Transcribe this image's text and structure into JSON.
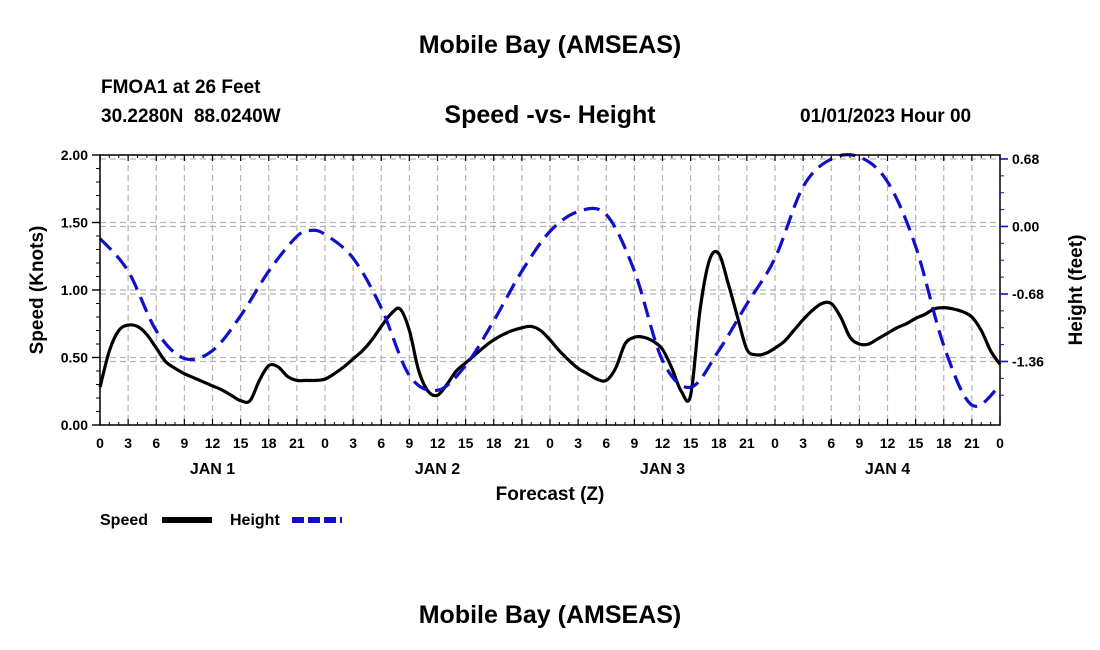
{
  "header": {
    "title": "Mobile Bay (AMSEAS)",
    "station": "FMOA1 at 26 Feet",
    "coords": "30.2280N  88.0240W",
    "subtitle": "Speed -vs- Height",
    "datetime": "01/01/2023 Hour 00"
  },
  "footer": {
    "title": "Mobile Bay (AMSEAS)"
  },
  "legend": {
    "speed_label": "Speed",
    "height_label": "Height"
  },
  "colors": {
    "speed": "#000000",
    "height": "#1010c8",
    "grid": "#b4b4b4"
  },
  "chart_data": {
    "type": "line",
    "title": "Speed -vs- Height",
    "xlabel": "Forecast (Z)",
    "ylabel": "Speed (Knots)",
    "y2label": "Height (feet)",
    "xlim": [
      0,
      96
    ],
    "ylim": [
      0,
      2.0
    ],
    "y2lim": [
      -2.0,
      0.72
    ],
    "x_ticks": [
      0,
      3,
      6,
      9,
      12,
      15,
      18,
      21,
      24,
      27,
      30,
      33,
      36,
      39,
      42,
      45,
      48,
      51,
      54,
      57,
      60,
      63,
      66,
      69,
      72,
      75,
      78,
      81,
      84,
      87,
      90,
      93,
      96
    ],
    "x_tick_labels": [
      "0",
      "3",
      "6",
      "9",
      "12",
      "15",
      "18",
      "21",
      "0",
      "3",
      "6",
      "9",
      "12",
      "15",
      "18",
      "21",
      "0",
      "3",
      "6",
      "9",
      "12",
      "15",
      "18",
      "21",
      "0",
      "3",
      "6",
      "9",
      "12",
      "15",
      "18",
      "21",
      "0"
    ],
    "day_labels": [
      {
        "x": 12,
        "label": "JAN 1"
      },
      {
        "x": 36,
        "label": "JAN 2"
      },
      {
        "x": 60,
        "label": "JAN 3"
      },
      {
        "x": 84,
        "label": "JAN 4"
      }
    ],
    "y_ticks": [
      0.0,
      0.5,
      1.0,
      1.5,
      2.0
    ],
    "y_tick_labels": [
      "0.00",
      "0.50",
      "1.00",
      "1.50",
      "2.00"
    ],
    "y2_ticks": [
      0.68,
      0.0,
      -0.68,
      -1.36
    ],
    "y2_tick_labels": [
      "0.68",
      "0.00",
      "-0.68",
      "-1.36"
    ],
    "series": [
      {
        "name": "Speed",
        "axis": "left",
        "style": "solid",
        "x": [
          0,
          1,
          2,
          3,
          4,
          5,
          6,
          7,
          8,
          9,
          10,
          11,
          12,
          13,
          14,
          15,
          16,
          17,
          18,
          19,
          20,
          21,
          22,
          23,
          24,
          25,
          26,
          27,
          28,
          29,
          30,
          31,
          32,
          33,
          34,
          35,
          36,
          37,
          38,
          39,
          40,
          41,
          42,
          43,
          44,
          45,
          46,
          47,
          48,
          49,
          50,
          51,
          52,
          53,
          54,
          55,
          56,
          57,
          58,
          59,
          60,
          61,
          62,
          63,
          64,
          65,
          66,
          67,
          68,
          69,
          70,
          71,
          72,
          73,
          74,
          75,
          76,
          77,
          78,
          79,
          80,
          81,
          82,
          83,
          84,
          85,
          86,
          87,
          88,
          89,
          90,
          91,
          92,
          93,
          94,
          95,
          96
        ],
        "values": [
          0.28,
          0.55,
          0.7,
          0.74,
          0.73,
          0.67,
          0.57,
          0.47,
          0.42,
          0.38,
          0.35,
          0.32,
          0.29,
          0.26,
          0.22,
          0.18,
          0.18,
          0.33,
          0.44,
          0.43,
          0.36,
          0.33,
          0.33,
          0.33,
          0.34,
          0.38,
          0.43,
          0.49,
          0.55,
          0.63,
          0.73,
          0.82,
          0.86,
          0.7,
          0.4,
          0.25,
          0.22,
          0.3,
          0.4,
          0.46,
          0.52,
          0.58,
          0.63,
          0.67,
          0.7,
          0.72,
          0.73,
          0.7,
          0.63,
          0.55,
          0.48,
          0.42,
          0.38,
          0.34,
          0.33,
          0.42,
          0.6,
          0.65,
          0.65,
          0.62,
          0.56,
          0.42,
          0.25,
          0.22,
          0.85,
          1.22,
          1.27,
          1.05,
          0.8,
          0.56,
          0.52,
          0.53,
          0.57,
          0.62,
          0.7,
          0.78,
          0.85,
          0.9,
          0.9,
          0.8,
          0.65,
          0.6,
          0.6,
          0.64,
          0.68,
          0.72,
          0.75,
          0.79,
          0.82,
          0.86,
          0.87,
          0.86,
          0.84,
          0.8,
          0.7,
          0.55,
          0.45
        ]
      },
      {
        "name": "Height",
        "axis": "right",
        "style": "dashed",
        "x": [
          0,
          3,
          6,
          9,
          12,
          15,
          18,
          21,
          22.5,
          24,
          27,
          30,
          33,
          36,
          39,
          42,
          45,
          48,
          51,
          54,
          57,
          60,
          63,
          66,
          69,
          72,
          75,
          78,
          81,
          84,
          87,
          90,
          93,
          96
        ],
        "values": [
          -0.12,
          -0.45,
          -1.05,
          -1.33,
          -1.25,
          -0.9,
          -0.45,
          -0.1,
          -0.04,
          -0.08,
          -0.32,
          -0.82,
          -1.5,
          -1.65,
          -1.4,
          -0.95,
          -0.45,
          -0.05,
          0.15,
          0.12,
          -0.45,
          -1.35,
          -1.62,
          -1.25,
          -0.78,
          -0.32,
          0.4,
          0.68,
          0.7,
          0.45,
          -0.2,
          -1.2,
          -1.8,
          -1.6
        ]
      }
    ]
  }
}
